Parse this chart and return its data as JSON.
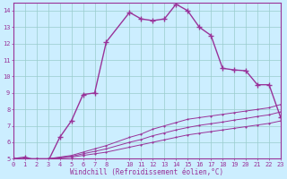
{
  "xlabel": "Windchill (Refroidissement éolien,°C)",
  "background_color": "#cceeff",
  "line_color": "#993399",
  "xlim": [
    0,
    23
  ],
  "ylim": [
    5,
    14.5
  ],
  "xticks": [
    0,
    1,
    2,
    3,
    4,
    5,
    6,
    7,
    8,
    10,
    11,
    12,
    13,
    14,
    15,
    16,
    17,
    18,
    19,
    20,
    21,
    22,
    23
  ],
  "yticks": [
    5,
    6,
    7,
    8,
    9,
    10,
    11,
    12,
    13,
    14
  ],
  "grid_color": "#99cccc",
  "curve1_x": [
    0,
    1,
    2,
    3,
    4,
    5,
    6,
    7,
    8,
    10,
    11,
    12,
    13,
    14,
    15,
    16,
    17,
    18,
    19,
    20,
    21,
    22,
    23
  ],
  "curve1_y": [
    5.0,
    5.1,
    4.9,
    4.85,
    6.3,
    7.3,
    8.9,
    9.0,
    12.1,
    13.9,
    13.5,
    13.4,
    13.5,
    14.4,
    14.0,
    13.0,
    12.5,
    10.5,
    10.4,
    10.35,
    9.5,
    9.5,
    7.5
  ],
  "curve2_x": [
    0,
    1,
    2,
    3,
    4,
    5,
    6,
    7,
    8,
    10,
    11,
    12,
    13,
    14,
    15,
    16,
    17,
    18,
    19,
    20,
    21,
    22,
    23
  ],
  "curve2_y": [
    5.0,
    5.0,
    5.0,
    5.0,
    5.1,
    5.2,
    5.4,
    5.6,
    5.8,
    6.3,
    6.5,
    6.8,
    7.0,
    7.2,
    7.4,
    7.5,
    7.6,
    7.7,
    7.8,
    7.9,
    8.0,
    8.1,
    8.3
  ],
  "curve3_x": [
    0,
    1,
    2,
    3,
    4,
    5,
    6,
    7,
    8,
    10,
    11,
    12,
    13,
    14,
    15,
    16,
    17,
    18,
    19,
    20,
    21,
    22,
    23
  ],
  "curve3_y": [
    5.0,
    5.0,
    5.0,
    5.0,
    5.05,
    5.1,
    5.2,
    5.3,
    5.4,
    5.7,
    5.85,
    6.0,
    6.15,
    6.3,
    6.45,
    6.55,
    6.65,
    6.75,
    6.85,
    6.95,
    7.05,
    7.15,
    7.3
  ],
  "curve4_x": [
    0,
    1,
    2,
    3,
    4,
    5,
    6,
    7,
    8,
    10,
    11,
    12,
    13,
    14,
    15,
    16,
    17,
    18,
    19,
    20,
    21,
    22,
    23
  ],
  "curve4_y": [
    5.0,
    5.0,
    5.0,
    5.0,
    5.07,
    5.15,
    5.3,
    5.45,
    5.6,
    6.0,
    6.17,
    6.4,
    6.57,
    6.75,
    6.9,
    7.03,
    7.13,
    7.23,
    7.35,
    7.45,
    7.57,
    7.67,
    7.85
  ]
}
